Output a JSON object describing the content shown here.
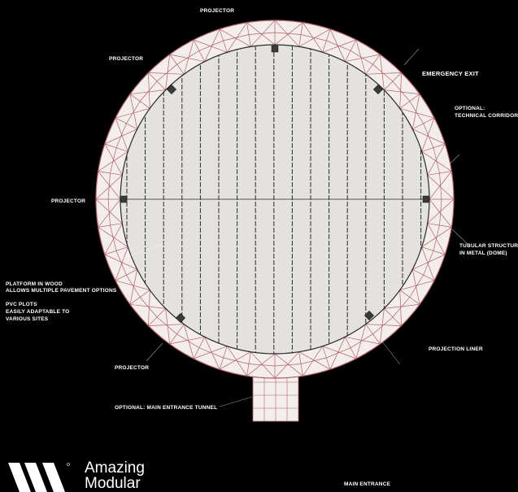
{
  "labels": {
    "projector_top": "PROJECTOR",
    "projector_upper_left": "PROJECTOR",
    "projector_left": "PROJECTOR",
    "projector_lower_left": "PROJECTOR",
    "emergency_exit": "EMERGENCY EXIT",
    "technical_corridor_1": "OPTIONAL:",
    "technical_corridor_2": "TECHNICAL CORRIDOR",
    "tubular_structure_1": "TUBULAR STRUCTURE",
    "tubular_structure_2": "IN METAL (DOME)",
    "platform_1": "PLATFORM IN WOOD",
    "platform_2": "ALLOWS MULTIPLE PAVEMENT OPTIONS",
    "pvc_1": "PVC PLOTS",
    "pvc_2": "EASILY ADAPTABLE TO",
    "pvc_3": "VARIOUS SITES",
    "projection_liner": "PROJECTION LINER",
    "main_entrance_tunnel": "OPTIONAL: MAIN ENTRANCE TUNNEL",
    "main_entrance": "MAIN ENTRANCE"
  },
  "brand": {
    "name_line1": "Amazing",
    "name_line2": "Modular",
    "logo_icon": "amazing-modular-logo-icon"
  },
  "colors": {
    "background": "#000000",
    "floor": "#e4e2df",
    "ring": "#f3eeec",
    "structure": "#b0616a",
    "joists": "#2a2a2a",
    "text": "#ffffff"
  }
}
